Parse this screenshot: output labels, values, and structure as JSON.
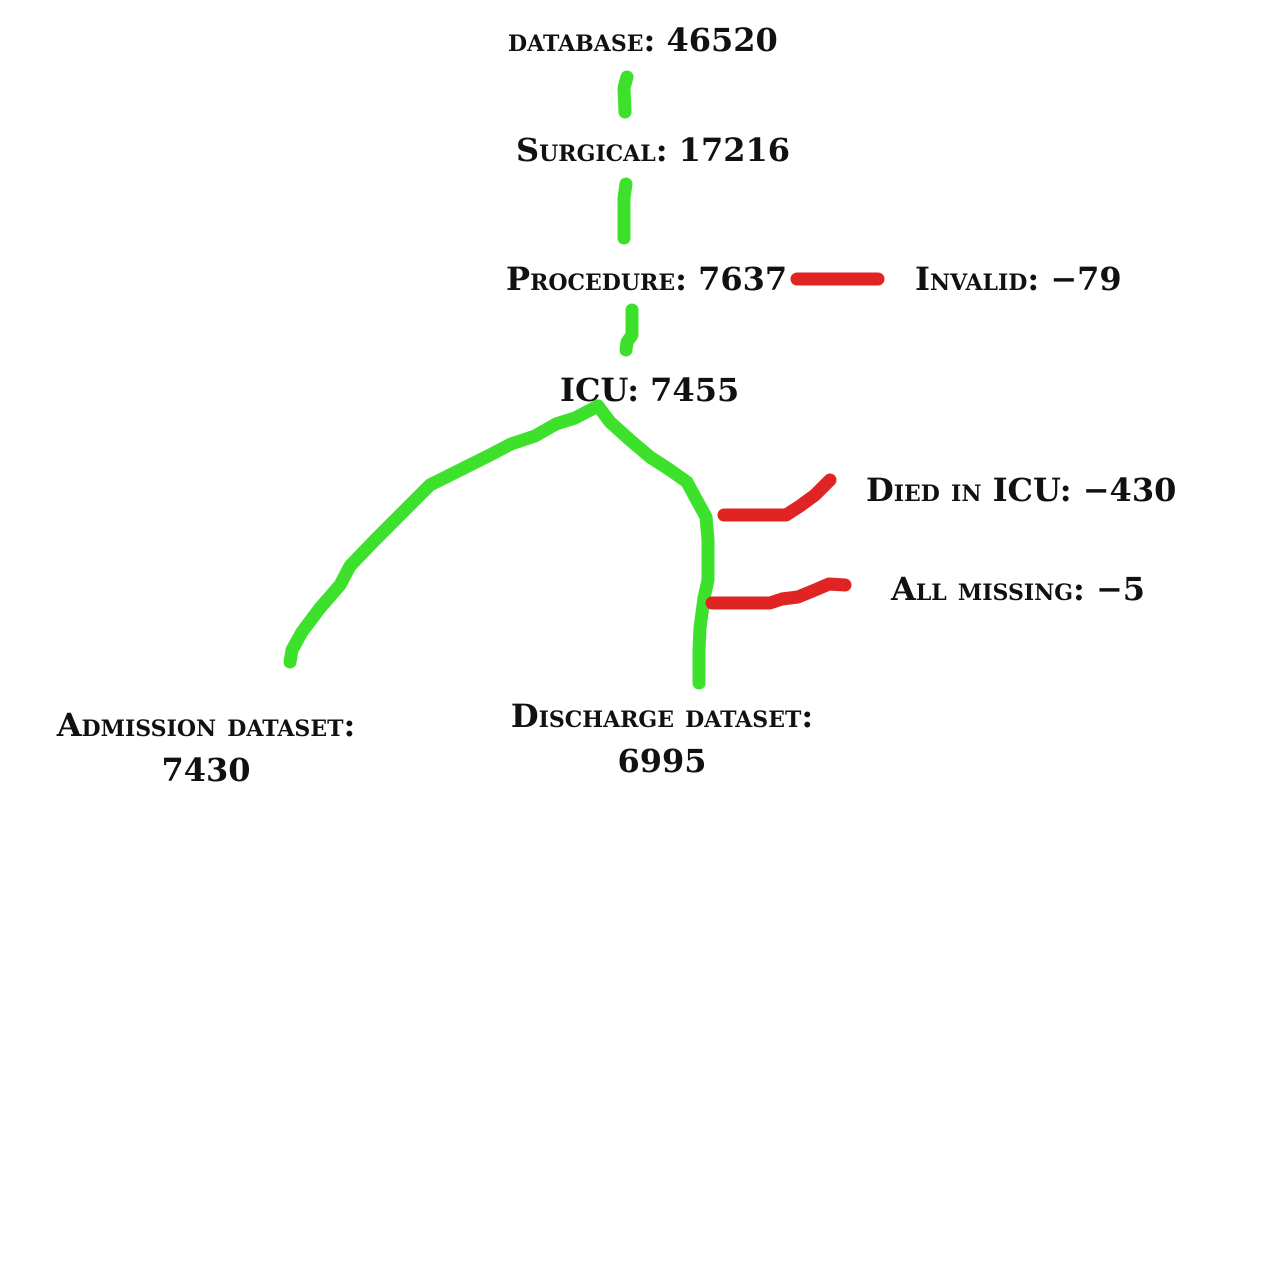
{
  "colors": {
    "flow": "#3de02a",
    "exclusion": "#e02424",
    "text": "#111111",
    "background": "#ffffff"
  },
  "nodes": {
    "database": {
      "label": "database:",
      "count": "46520"
    },
    "surgical": {
      "label": "Surgical:",
      "count": "17216"
    },
    "procedure": {
      "label": "Procedure:",
      "count": "7637"
    },
    "icu": {
      "label": "ICU:",
      "count": "7455"
    },
    "admission": {
      "label": "Admission dataset:",
      "count": "7430"
    },
    "discharge": {
      "label": "Discharge dataset:",
      "count": "6995"
    }
  },
  "exclusions": {
    "invalid": {
      "label": "Invalid:",
      "count": "−79"
    },
    "died_in_icu": {
      "label": "Died in ICU:",
      "count": "−430"
    },
    "all_missing": {
      "label": "All missing:",
      "count": "−5"
    }
  }
}
